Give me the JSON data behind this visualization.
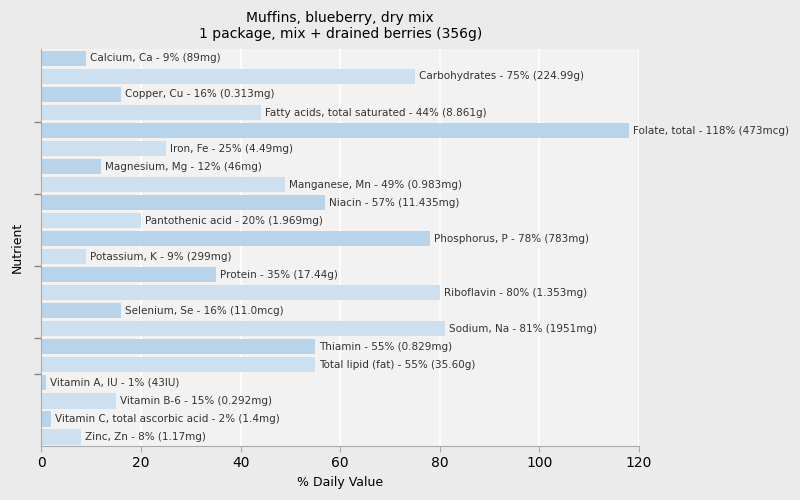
{
  "title": "Muffins, blueberry, dry mix\n1 package, mix + drained berries (356g)",
  "xlabel": "% Daily Value",
  "ylabel": "Nutrient",
  "xlim": [
    0,
    120
  ],
  "xticks": [
    0,
    20,
    40,
    60,
    80,
    100,
    120
  ],
  "background_color": "#ebebeb",
  "plot_bg_color": "#f2f2f2",
  "bar_color_odd": "#b8d4ea",
  "bar_color_even": "#cce0f0",
  "nutrients": [
    {
      "label": "Calcium, Ca - 9% (89mg)",
      "value": 9
    },
    {
      "label": "Carbohydrates - 75% (224.99g)",
      "value": 75
    },
    {
      "label": "Copper, Cu - 16% (0.313mg)",
      "value": 16
    },
    {
      "label": "Fatty acids, total saturated - 44% (8.861g)",
      "value": 44
    },
    {
      "label": "Folate, total - 118% (473mcg)",
      "value": 118
    },
    {
      "label": "Iron, Fe - 25% (4.49mg)",
      "value": 25
    },
    {
      "label": "Magnesium, Mg - 12% (46mg)",
      "value": 12
    },
    {
      "label": "Manganese, Mn - 49% (0.983mg)",
      "value": 49
    },
    {
      "label": "Niacin - 57% (11.435mg)",
      "value": 57
    },
    {
      "label": "Pantothenic acid - 20% (1.969mg)",
      "value": 20
    },
    {
      "label": "Phosphorus, P - 78% (783mg)",
      "value": 78
    },
    {
      "label": "Potassium, K - 9% (299mg)",
      "value": 9
    },
    {
      "label": "Protein - 35% (17.44g)",
      "value": 35
    },
    {
      "label": "Riboflavin - 80% (1.353mg)",
      "value": 80
    },
    {
      "label": "Selenium, Se - 16% (11.0mcg)",
      "value": 16
    },
    {
      "label": "Sodium, Na - 81% (1951mg)",
      "value": 81
    },
    {
      "label": "Thiamin - 55% (0.829mg)",
      "value": 55
    },
    {
      "label": "Total lipid (fat) - 55% (35.60g)",
      "value": 55
    },
    {
      "label": "Vitamin A, IU - 1% (43IU)",
      "value": 1
    },
    {
      "label": "Vitamin B-6 - 15% (0.292mg)",
      "value": 15
    },
    {
      "label": "Vitamin C, total ascorbic acid - 2% (1.4mg)",
      "value": 2
    },
    {
      "label": "Zinc, Zn - 8% (1.17mg)",
      "value": 8
    }
  ],
  "group_separators": [
    3.5,
    5.5,
    7.5,
    9.5,
    11.5,
    13.5,
    15.5,
    17.5,
    21.5
  ],
  "title_fontsize": 10,
  "label_fontsize": 7.5,
  "axis_label_fontsize": 9
}
